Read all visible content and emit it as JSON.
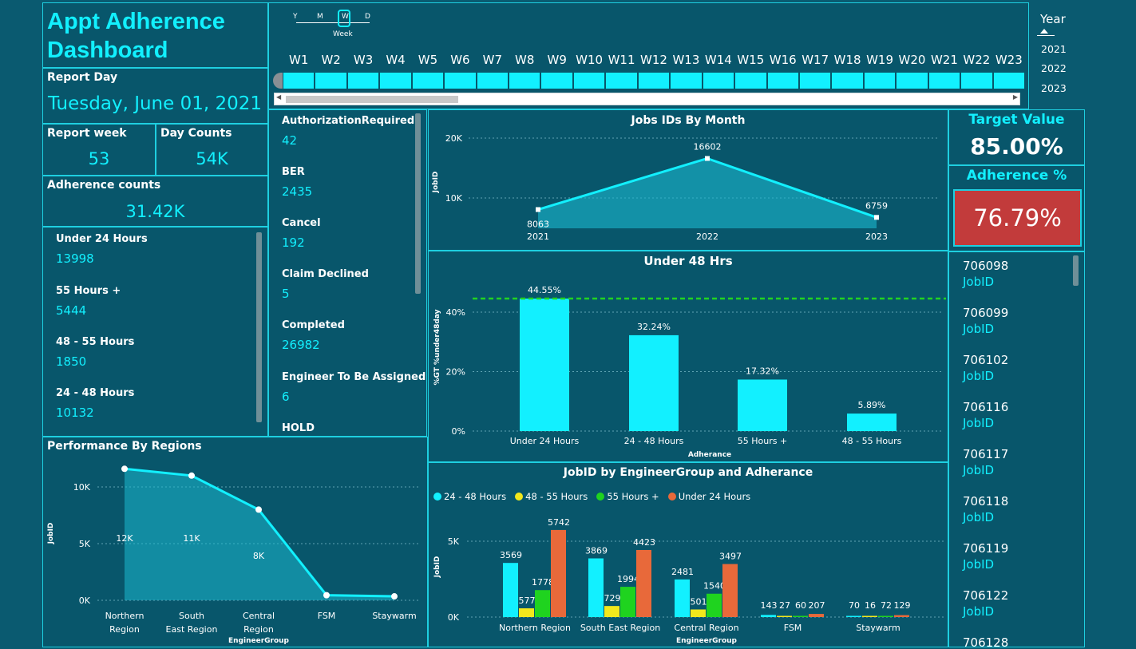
{
  "title": {
    "line1": "Appt Adherence",
    "line2": "Dashboard"
  },
  "report_day": {
    "label": "Report Day",
    "value": "Tuesday, June 01, 2021"
  },
  "report_week": {
    "label": "Report week",
    "value": "53"
  },
  "day_counts": {
    "label": "Day Counts",
    "value": "54K"
  },
  "adherence_counts": {
    "label": "Adherence counts",
    "value": "31.42K"
  },
  "hour_buckets": [
    {
      "label": "Under 24 Hours",
      "value": "13998"
    },
    {
      "label": "55 Hours +",
      "value": "5444"
    },
    {
      "label": "48 - 55 Hours",
      "value": "1850"
    },
    {
      "label": "24 - 48 Hours",
      "value": "10132"
    }
  ],
  "status_list": [
    {
      "label": "AuthorizationRequired",
      "value": "42"
    },
    {
      "label": "BER",
      "value": "2435"
    },
    {
      "label": "Cancel",
      "value": "192"
    },
    {
      "label": "Claim Declined",
      "value": "5"
    },
    {
      "label": "Completed",
      "value": "26982"
    },
    {
      "label": "Engineer To Be Assigned",
      "value": "6"
    },
    {
      "label": "HOLD",
      "value": ""
    }
  ],
  "granularity": {
    "options": [
      "Y",
      "M",
      "W",
      "D"
    ],
    "selected": "W",
    "caption": "Week"
  },
  "weeks": [
    "W1",
    "W2",
    "W3",
    "W4",
    "W5",
    "W6",
    "W7",
    "W8",
    "W9",
    "W10",
    "W11",
    "W12",
    "W13",
    "W14",
    "W15",
    "W16",
    "W17",
    "W18",
    "W19",
    "W20",
    "W21",
    "W22",
    "W23"
  ],
  "year_filter": {
    "label": "Year",
    "options": [
      "2021",
      "2022",
      "2023"
    ]
  },
  "target": {
    "label": "Target Value",
    "value": "85.00%"
  },
  "adherence": {
    "label": "Adherence %",
    "value": "76.79%"
  },
  "job_ids": [
    {
      "id": "706098",
      "label": "JobID"
    },
    {
      "id": "706099",
      "label": "JobID"
    },
    {
      "id": "706102",
      "label": "JobID"
    },
    {
      "id": "706116",
      "label": "JobID"
    },
    {
      "id": "706117",
      "label": "JobID"
    },
    {
      "id": "706118",
      "label": "JobID"
    },
    {
      "id": "706119",
      "label": "JobID"
    },
    {
      "id": "706122",
      "label": "JobID"
    },
    {
      "id": "706128",
      "label": ""
    }
  ],
  "colors": {
    "cyan": "#12f0ff",
    "yellow": "#f2e81c",
    "green": "#1fd31f",
    "orange": "#e8693a",
    "red_card": "#c23b3b"
  },
  "chart_data": [
    {
      "type": "area",
      "title": "Jobs IDs By Month",
      "ylabel": "JobID",
      "x": [
        "2021",
        "2022",
        "2023"
      ],
      "values": [
        8063,
        16602,
        6759
      ],
      "data_labels": [
        "8063",
        "16602",
        "6759"
      ],
      "yticks": [
        "20K",
        "10K"
      ],
      "ylim": [
        0,
        20000
      ]
    },
    {
      "type": "bar",
      "title": "Under 48 Hrs",
      "xlabel": "Adherance",
      "ylabel": "%GT %under48day",
      "categories": [
        "Under 24 Hours",
        "24 - 48 Hours",
        "55 Hours +",
        "48 - 55 Hours"
      ],
      "values": [
        44.55,
        32.24,
        17.32,
        5.89
      ],
      "data_labels": [
        "44.55%",
        "32.24%",
        "17.32%",
        "5.89%"
      ],
      "yticks": [
        "40%",
        "20%",
        "0%"
      ],
      "reference_line": 44.55,
      "ylim": [
        0,
        50
      ]
    },
    {
      "type": "area",
      "title": "Performance By Regions",
      "xlabel": "EngineerGroup",
      "ylabel": "JobID",
      "categories": [
        "Northern Region",
        "South East Region",
        "Central Region",
        "FSM",
        "Staywarm"
      ],
      "values": [
        11600,
        11000,
        8000,
        450,
        350
      ],
      "data_labels": [
        "12K",
        "11K",
        "8K",
        "",
        ""
      ],
      "yticks": [
        "10K",
        "5K",
        "0K"
      ],
      "ylim": [
        0,
        12800
      ]
    },
    {
      "type": "bar",
      "title": "JobID by EngineerGroup and Adherance",
      "xlabel": "EngineerGroup",
      "ylabel": "JobID",
      "categories": [
        "Northern Region",
        "South East Region",
        "Central Region",
        "FSM",
        "Staywarm"
      ],
      "series": [
        {
          "name": "24 - 48 Hours",
          "values": [
            3569,
            3869,
            2481,
            143,
            70
          ]
        },
        {
          "name": "48 - 55 Hours",
          "values": [
            577,
            729,
            501,
            27,
            16
          ]
        },
        {
          "name": "55 Hours +",
          "values": [
            1778,
            1994,
            1540,
            60,
            72
          ]
        },
        {
          "name": "Under 24 Hours",
          "values": [
            5742,
            4423,
            3497,
            207,
            129
          ]
        }
      ],
      "yticks": [
        "5K",
        "0K"
      ],
      "ylim": [
        0,
        6500
      ]
    }
  ]
}
